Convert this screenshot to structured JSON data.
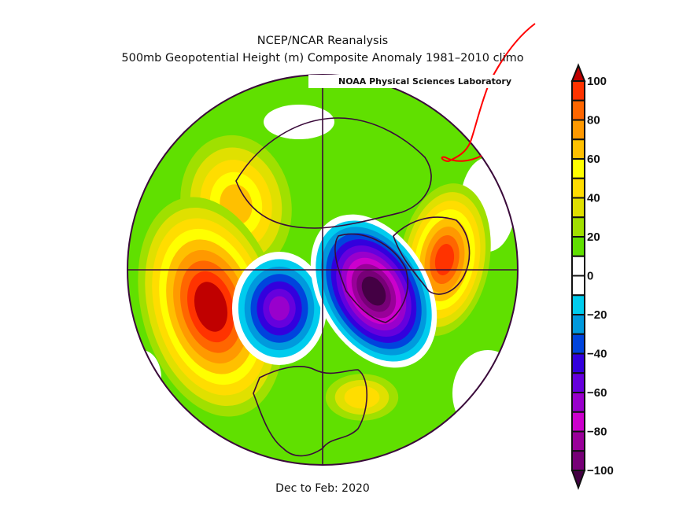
{
  "header": {
    "title": "NCEP/NCAR Reanalysis",
    "subtitle": "500mb Geopotential Height (m) Composite Anomaly 1981–2010 climo",
    "lab_label": "NOAA Physical Sciences Laboratory"
  },
  "footer": {
    "period": "Dec to Feb: 2020"
  },
  "colorbar": {
    "units": "m",
    "range": [
      -100,
      100
    ],
    "step": 10,
    "tick_labels": [
      "100",
      "80",
      "60",
      "40",
      "20",
      "0",
      "−20",
      "−40",
      "−60",
      "−80",
      "−100"
    ],
    "tick_values": [
      100,
      80,
      60,
      40,
      20,
      0,
      -20,
      -40,
      -60,
      -80,
      -100
    ],
    "over_color": "#c00000",
    "under_color": "#440044",
    "bin_colors_top_to_bottom": [
      "#ff3300",
      "#ff6600",
      "#ff9900",
      "#ffc000",
      "#ffff00",
      "#ffdd00",
      "#e0e000",
      "#a0e000",
      "#60e000",
      "#ffffff",
      "#ffffff",
      "#00ccee",
      "#0099dd",
      "#0044dd",
      "#3300dd",
      "#6600dd",
      "#9900cc",
      "#cc00cc",
      "#990099",
      "#770077"
    ]
  },
  "map": {
    "projection": "north polar stereographic",
    "line_color": "#3a0a3a",
    "annotation_color": "#ff0000"
  }
}
